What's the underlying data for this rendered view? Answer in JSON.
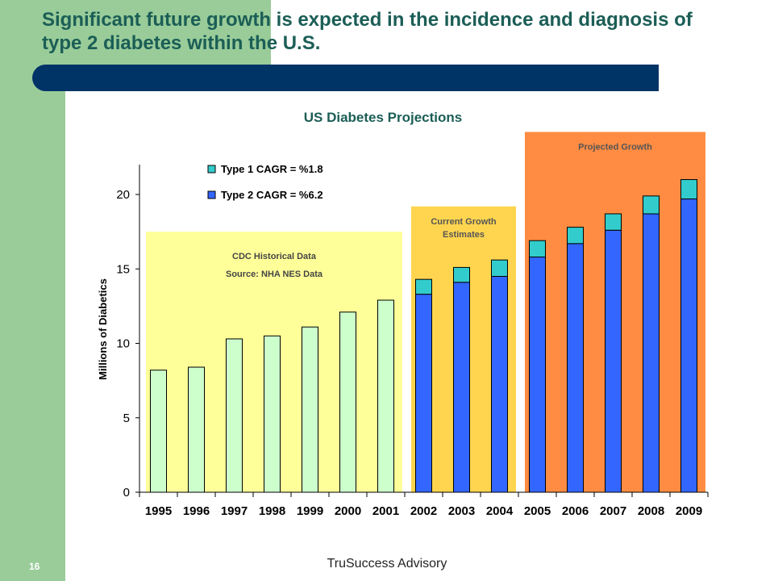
{
  "slide": {
    "headline": "Significant future growth is expected in the incidence and diagnosis of type 2 diabetes within the U.S.",
    "footer": "TruSuccess Advisory",
    "page_number": "16"
  },
  "colors": {
    "teal_title": "#1b5e56",
    "navy": "#003366",
    "side_green": "#99cc99",
    "historical_zone": "#ffff99",
    "current_zone": "#ffd54f",
    "projected_zone": "#ff8c42",
    "historical_bar": "#ccffcc",
    "type1": "#33cccc",
    "type2": "#3366ff"
  },
  "chart_data": {
    "type": "bar",
    "stacked": true,
    "title": "US Diabetes Projections",
    "ylabel": "Millions of Diabetics",
    "xlabel": "",
    "ylim": [
      0,
      22
    ],
    "yticks": [
      0,
      5,
      10,
      15,
      20
    ],
    "categories": [
      "1995",
      "1996",
      "1997",
      "1998",
      "1999",
      "2000",
      "2001",
      "2002",
      "2003",
      "2004",
      "2005",
      "2006",
      "2007",
      "2008",
      "2009"
    ],
    "historical_totals": [
      8.2,
      8.4,
      10.3,
      10.5,
      11.1,
      12.1,
      12.9,
      null,
      null,
      null,
      null,
      null,
      null,
      null,
      null
    ],
    "series": [
      {
        "name": "Type 2 CAGR = %6.2",
        "color": "#3366ff",
        "values": [
          null,
          null,
          null,
          null,
          null,
          null,
          null,
          13.3,
          14.1,
          14.5,
          15.8,
          16.7,
          17.6,
          18.7,
          19.7
        ]
      },
      {
        "name": "Type 1 CAGR = %1.8",
        "color": "#33cccc",
        "values": [
          null,
          null,
          null,
          null,
          null,
          null,
          null,
          1.0,
          1.0,
          1.1,
          1.1,
          1.1,
          1.1,
          1.2,
          1.3
        ]
      }
    ],
    "legend": [
      "Type 1 CAGR = %1.8",
      "Type 2 CAGR = %6.2"
    ],
    "legend_position": "top-left",
    "zones": [
      {
        "lines": [
          "CDC Historical Data",
          "Source: NHA NES Data"
        ],
        "from": "1995",
        "to": "2001",
        "top": 17.5,
        "color": "#ffff99"
      },
      {
        "lines": [
          "Current Growth",
          "Estimates"
        ],
        "from": "2002",
        "to": "2004",
        "top": 19.2,
        "color": "#ffd54f"
      },
      {
        "lines": [
          "Projected Growth"
        ],
        "from": "2005",
        "to": "2009",
        "top": 24.2,
        "color": "#ff8c42"
      }
    ]
  }
}
